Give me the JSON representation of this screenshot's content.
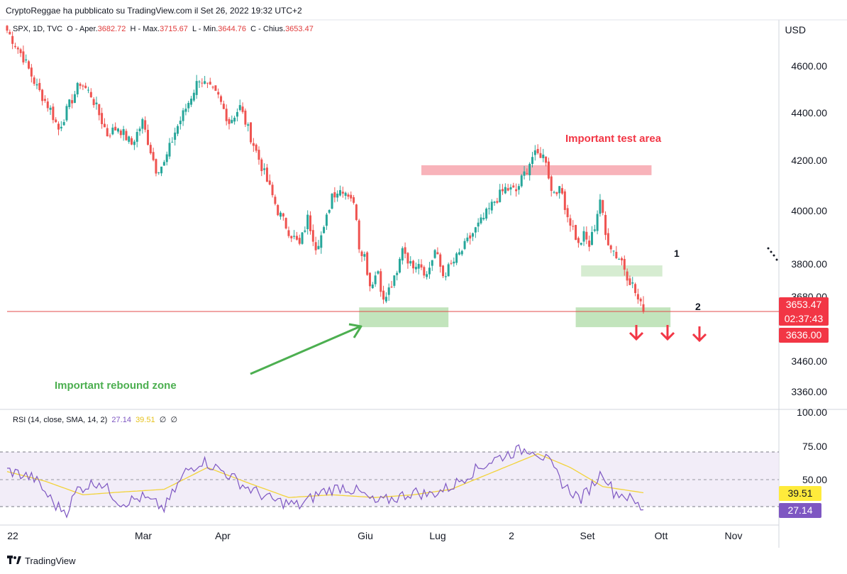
{
  "header": {
    "published": "CryptoReggae ha pubblicato su TradingView.com il Set 26, 2022 19:32 UTC+2",
    "symbol": "SPX, 1D, TVC",
    "open_label": "O - Aper.",
    "open_value": "3682.72",
    "high_label": "H - Max.",
    "high_value": "3715.67",
    "low_label": "L - Min.",
    "low_value": "3644.76",
    "close_label": "C - Chius.",
    "close_value": "3653.47"
  },
  "price_axis": {
    "currency": "USD",
    "ticks": [
      "4600.00",
      "4400.00",
      "4200.00",
      "4000.00",
      "3800.00",
      "3680.00",
      "3460.00",
      "3360.00"
    ],
    "last_price": "3653.47",
    "countdown": "02:37:43",
    "alert_price": "3636.00"
  },
  "rsi": {
    "legend_name": "RSI (14, close, SMA, 14, 2)",
    "rsi_value": "27.14",
    "sma_value": "39.51",
    "na1": "∅",
    "na2": "∅",
    "ticks": [
      "100.00",
      "75.00",
      "50.00"
    ]
  },
  "time_axis": {
    "labels": [
      "22",
      "Mar",
      "Apr",
      "Giu",
      "Lug",
      "2",
      "Set",
      "Ott",
      "Nov"
    ]
  },
  "annotations": {
    "test_area": "Important test area",
    "rebound": "Important rebound zone",
    "zone1_num": "1",
    "zone2_num": "2"
  },
  "footer": {
    "brand": "TradingView"
  },
  "colors": {
    "up": "#26a69a",
    "down": "#ef5350",
    "rsi": "#7e57c2",
    "rsi_ma": "#f2d33a",
    "green_text": "#4caf50",
    "red_text": "#f23645",
    "tag_red": "#f23645",
    "tag_purple": "#7e57c2",
    "tag_yellow": "#ffeb3b"
  },
  "chart_data": {
    "type": "candlestick",
    "axis_ranges": {
      "price": [
        3300,
        4830
      ],
      "rsi": [
        0,
        100
      ]
    },
    "anchors": [
      {
        "i": 0,
        "p": 4790
      },
      {
        "i": 6,
        "p": 4680
      },
      {
        "i": 11,
        "p": 4560
      },
      {
        "i": 16,
        "p": 4470
      },
      {
        "i": 19,
        "p": 4390
      },
      {
        "i": 23,
        "p": 4490
      },
      {
        "i": 27,
        "p": 4580
      },
      {
        "i": 31,
        "p": 4530
      },
      {
        "i": 37,
        "p": 4370
      },
      {
        "i": 41,
        "p": 4400
      },
      {
        "i": 46,
        "p": 4330
      },
      {
        "i": 50,
        "p": 4420
      },
      {
        "i": 55,
        "p": 4230
      },
      {
        "i": 58,
        "p": 4250
      },
      {
        "i": 62,
        "p": 4380
      },
      {
        "i": 67,
        "p": 4500
      },
      {
        "i": 71,
        "p": 4600
      },
      {
        "i": 74,
        "p": 4560
      },
      {
        "i": 78,
        "p": 4520
      },
      {
        "i": 82,
        "p": 4420
      },
      {
        "i": 86,
        "p": 4480
      },
      {
        "i": 90,
        "p": 4360
      },
      {
        "i": 94,
        "p": 4240
      },
      {
        "i": 100,
        "p": 4060
      },
      {
        "i": 104,
        "p": 3980
      },
      {
        "i": 108,
        "p": 3920
      },
      {
        "i": 111,
        "p": 4030
      },
      {
        "i": 114,
        "p": 3920
      },
      {
        "i": 117,
        "p": 3980
      },
      {
        "i": 120,
        "p": 4130
      },
      {
        "i": 124,
        "p": 4150
      },
      {
        "i": 127,
        "p": 4120
      },
      {
        "i": 129,
        "p": 4040
      },
      {
        "i": 130,
        "p": 3920
      },
      {
        "i": 132,
        "p": 3880
      },
      {
        "i": 134,
        "p": 3760
      },
      {
        "i": 137,
        "p": 3820
      },
      {
        "i": 139,
        "p": 3690
      },
      {
        "i": 141,
        "p": 3740
      },
      {
        "i": 144,
        "p": 3800
      },
      {
        "i": 146,
        "p": 3920
      },
      {
        "i": 149,
        "p": 3840
      },
      {
        "i": 152,
        "p": 3860
      },
      {
        "i": 155,
        "p": 3800
      },
      {
        "i": 158,
        "p": 3900
      },
      {
        "i": 161,
        "p": 3800
      },
      {
        "i": 164,
        "p": 3840
      },
      {
        "i": 168,
        "p": 3900
      },
      {
        "i": 172,
        "p": 3970
      },
      {
        "i": 176,
        "p": 4030
      },
      {
        "i": 180,
        "p": 4100
      },
      {
        "i": 184,
        "p": 4150
      },
      {
        "i": 188,
        "p": 4140
      },
      {
        "i": 191,
        "p": 4210
      },
      {
        "i": 194,
        "p": 4280
      },
      {
        "i": 197,
        "p": 4290
      },
      {
        "i": 199,
        "p": 4270
      },
      {
        "i": 201,
        "p": 4140
      },
      {
        "i": 203,
        "p": 4150
      },
      {
        "i": 205,
        "p": 4130
      },
      {
        "i": 207,
        "p": 4040
      },
      {
        "i": 209,
        "p": 3990
      },
      {
        "i": 211,
        "p": 3920
      },
      {
        "i": 213,
        "p": 3960
      },
      {
        "i": 215,
        "p": 3920
      },
      {
        "i": 217,
        "p": 4000
      },
      {
        "i": 219,
        "p": 4110
      },
      {
        "i": 221,
        "p": 3960
      },
      {
        "i": 223,
        "p": 3920
      },
      {
        "i": 225,
        "p": 3880
      },
      {
        "i": 227,
        "p": 3860
      },
      {
        "i": 229,
        "p": 3800
      },
      {
        "i": 231,
        "p": 3760
      },
      {
        "i": 233,
        "p": 3700
      },
      {
        "i": 235,
        "p": 3653
      }
    ],
    "zones": [
      {
        "name": "test-area",
        "p1": 4205,
        "p2": 4245,
        "i1": 153,
        "i2": 238,
        "color": "#f7a6ae"
      },
      {
        "name": "zone-1",
        "p1": 3795,
        "p2": 3840,
        "i1": 212,
        "i2": 242,
        "color": "#cfe9c9"
      },
      {
        "name": "zone-2",
        "p1": 3590,
        "p2": 3670,
        "i1": 210,
        "i2": 245,
        "color": "#b7dfb0"
      },
      {
        "name": "rebound",
        "p1": 3590,
        "p2": 3670,
        "i1": 130,
        "i2": 163,
        "color": "#b7dfb0"
      }
    ],
    "support_line_price": 3653.47,
    "rsi_anchors": [
      {
        "i": 0,
        "v": 56
      },
      {
        "i": 10,
        "v": 50
      },
      {
        "i": 18,
        "v": 30
      },
      {
        "i": 22,
        "v": 26
      },
      {
        "i": 26,
        "v": 42
      },
      {
        "i": 34,
        "v": 48
      },
      {
        "i": 42,
        "v": 32
      },
      {
        "i": 50,
        "v": 36
      },
      {
        "i": 58,
        "v": 28
      },
      {
        "i": 66,
        "v": 55
      },
      {
        "i": 72,
        "v": 63
      },
      {
        "i": 80,
        "v": 55
      },
      {
        "i": 88,
        "v": 44
      },
      {
        "i": 98,
        "v": 34
      },
      {
        "i": 108,
        "v": 30
      },
      {
        "i": 116,
        "v": 40
      },
      {
        "i": 124,
        "v": 44
      },
      {
        "i": 130,
        "v": 40
      },
      {
        "i": 136,
        "v": 32
      },
      {
        "i": 144,
        "v": 36
      },
      {
        "i": 150,
        "v": 40
      },
      {
        "i": 156,
        "v": 38
      },
      {
        "i": 164,
        "v": 44
      },
      {
        "i": 172,
        "v": 55
      },
      {
        "i": 180,
        "v": 64
      },
      {
        "i": 188,
        "v": 70
      },
      {
        "i": 194,
        "v": 72
      },
      {
        "i": 200,
        "v": 62
      },
      {
        "i": 206,
        "v": 44
      },
      {
        "i": 212,
        "v": 35
      },
      {
        "i": 216,
        "v": 45
      },
      {
        "i": 220,
        "v": 55
      },
      {
        "i": 224,
        "v": 40
      },
      {
        "i": 228,
        "v": 38
      },
      {
        "i": 232,
        "v": 32
      },
      {
        "i": 235,
        "v": 27
      }
    ],
    "rsi_ma_anchors": [
      {
        "i": 0,
        "v": 55
      },
      {
        "i": 14,
        "v": 48
      },
      {
        "i": 28,
        "v": 38
      },
      {
        "i": 42,
        "v": 40
      },
      {
        "i": 58,
        "v": 42
      },
      {
        "i": 74,
        "v": 58
      },
      {
        "i": 90,
        "v": 46
      },
      {
        "i": 104,
        "v": 36
      },
      {
        "i": 120,
        "v": 38
      },
      {
        "i": 136,
        "v": 36
      },
      {
        "i": 150,
        "v": 38
      },
      {
        "i": 164,
        "v": 42
      },
      {
        "i": 180,
        "v": 55
      },
      {
        "i": 196,
        "v": 68
      },
      {
        "i": 208,
        "v": 58
      },
      {
        "i": 220,
        "v": 44
      },
      {
        "i": 235,
        "v": 39.5
      }
    ]
  }
}
